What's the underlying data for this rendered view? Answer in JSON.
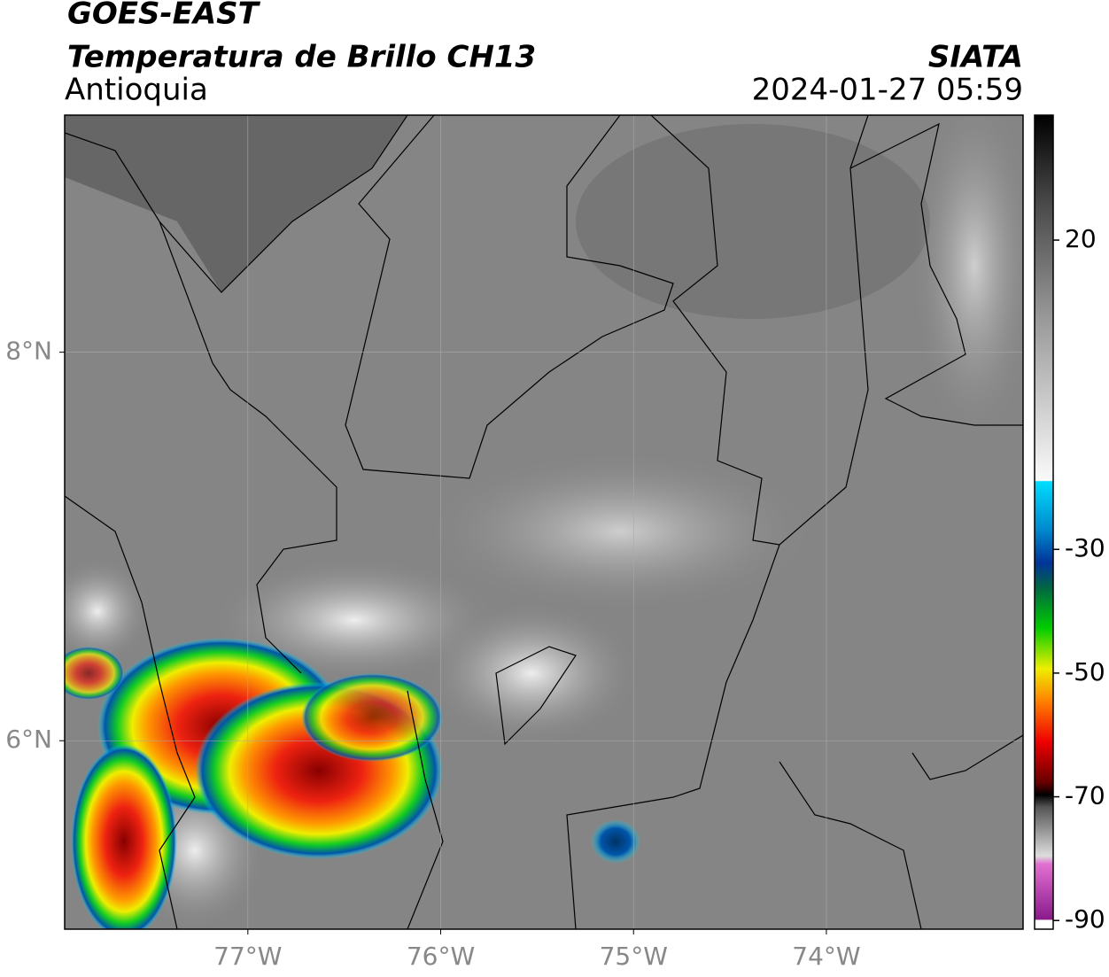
{
  "header": {
    "satellite": "GOES-EAST",
    "product": "Temperatura de Brillo CH13",
    "source": "SIATA",
    "region": "Antioquia",
    "datetime": "2024-01-27 05:59"
  },
  "map": {
    "lon_range": [
      -77.95,
      -72.98
    ],
    "lat_range": [
      5.03,
      9.22
    ],
    "lon_ticks": [
      {
        "value": -77,
        "label": "77°W"
      },
      {
        "value": -76,
        "label": "76°W"
      },
      {
        "value": -75,
        "label": "75°W"
      },
      {
        "value": -74,
        "label": "74°W"
      }
    ],
    "lat_ticks": [
      {
        "value": 8,
        "label": "8°N"
      },
      {
        "value": 6,
        "label": "6°N"
      }
    ]
  },
  "colorbar": {
    "range": [
      -91.4,
      40.2
    ],
    "ticks": [
      20,
      -30,
      -50,
      -70,
      -90
    ]
  }
}
